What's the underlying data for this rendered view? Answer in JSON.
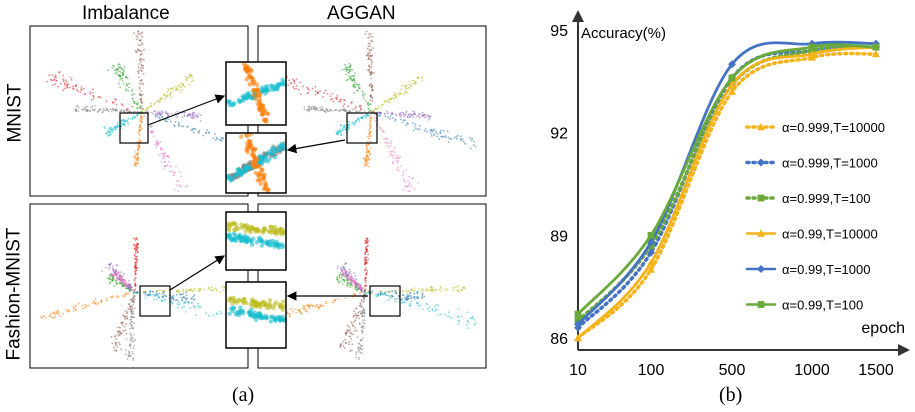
{
  "panel_a": {
    "col_titles": [
      "Imbalance",
      "AGGAN"
    ],
    "row_titles": [
      "MNIST",
      "Fashion-MNIST"
    ],
    "caption": "(a)",
    "class_colors": [
      "#d62728",
      "#2ca02c",
      "#8c564b",
      "#bcbd22",
      "#9467bd",
      "#1f77b4",
      "#e377c2",
      "#ff7f0e",
      "#17becf",
      "#7f7f7f"
    ]
  },
  "panel_b": {
    "caption": "(b)"
  },
  "chart_data": {
    "type": "line",
    "ylabel": "Accuracy(%)",
    "xlabel": "epoch",
    "x": [
      "10",
      "100",
      "500",
      "1000",
      "1500"
    ],
    "x_tick_labels": [
      "10",
      "100",
      "500",
      "1000",
      "1500"
    ],
    "y_ticks": [
      86,
      89,
      92,
      95
    ],
    "ylim": [
      86,
      95
    ],
    "grid": false,
    "legend_position": "right",
    "series": [
      {
        "name": "α=0.999,T=10000",
        "color": "#f5b31b",
        "style": "dotted",
        "marker": "triangle",
        "values": [
          86.0,
          88.0,
          93.2,
          94.2,
          94.3
        ]
      },
      {
        "name": "α=0.999,T=1000",
        "color": "#4472c4",
        "style": "dotted",
        "marker": "diamond",
        "values": [
          86.3,
          88.5,
          93.6,
          94.4,
          94.5
        ]
      },
      {
        "name": "α=0.999,T=100",
        "color": "#6aaa3a",
        "style": "dotted",
        "marker": "square",
        "values": [
          86.5,
          88.7,
          93.4,
          94.4,
          94.5
        ]
      },
      {
        "name": "α=0.99,T=10000",
        "color": "#f5b31b",
        "style": "solid",
        "marker": "triangle",
        "values": [
          86.0,
          88.2,
          93.4,
          94.3,
          94.5
        ]
      },
      {
        "name": "α=0.99,T=1000",
        "color": "#4472c4",
        "style": "solid",
        "marker": "diamond",
        "values": [
          86.4,
          88.8,
          94.0,
          94.6,
          94.6
        ]
      },
      {
        "name": "α=0.99,T=100",
        "color": "#6aaa3a",
        "style": "solid",
        "marker": "square",
        "values": [
          86.7,
          89.0,
          93.6,
          94.5,
          94.5
        ]
      }
    ]
  }
}
